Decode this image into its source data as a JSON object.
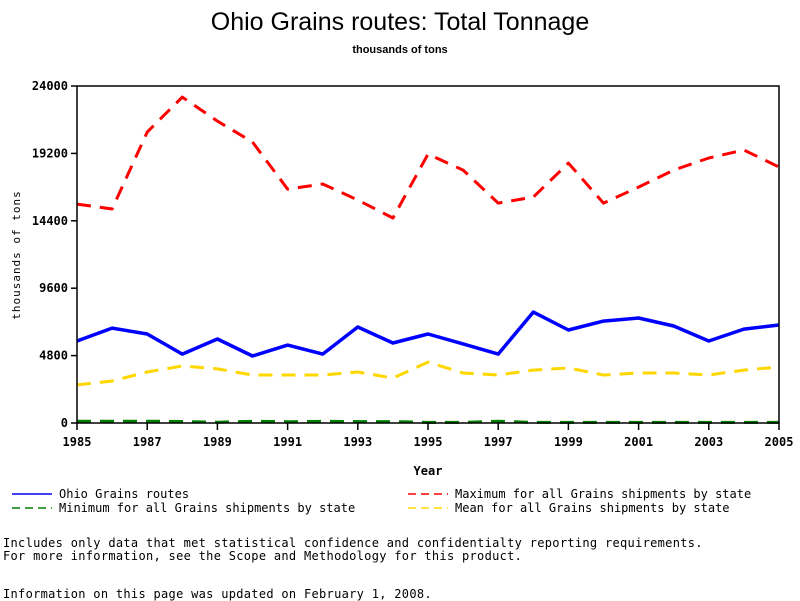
{
  "chart_data": {
    "type": "line",
    "title": "Ohio Grains routes: Total Tonnage",
    "subtitle": "thousands of tons",
    "xlabel": "Year",
    "ylabel": "thousands of tons",
    "x": [
      1985,
      1986,
      1987,
      1988,
      1989,
      1990,
      1991,
      1992,
      1993,
      1994,
      1995,
      1996,
      1997,
      1998,
      1999,
      2000,
      2001,
      2002,
      2003,
      2004,
      2005
    ],
    "xlim": [
      1985,
      2005
    ],
    "ylim": [
      0,
      24000
    ],
    "x_ticks": [
      "1985",
      "1987",
      "1989",
      "1991",
      "1993",
      "1995",
      "1997",
      "1999",
      "2001",
      "2003",
      "2005"
    ],
    "y_ticks": [
      "0",
      "4800",
      "9600",
      "14400",
      "19200",
      "24000"
    ],
    "grid": false,
    "legend_position": "bottom",
    "series": [
      {
        "name": "Ohio Grains routes",
        "color": "#0000ff",
        "style": "solid",
        "values": [
          5840,
          6760,
          6340,
          4910,
          5980,
          4770,
          5550,
          4910,
          6840,
          5700,
          6340,
          5630,
          4910,
          7900,
          6620,
          7260,
          7480,
          6910,
          5840,
          6690,
          6980
        ]
      },
      {
        "name": "Maximum for all Grains shipments by state",
        "color": "#ff0000",
        "style": "dashed",
        "values": [
          15590,
          15240,
          20720,
          23210,
          21500,
          20010,
          16660,
          17020,
          15880,
          14600,
          19150,
          18010,
          15660,
          16090,
          18510,
          15660,
          16800,
          18010,
          18870,
          19440,
          18230
        ]
      },
      {
        "name": "Minimum for all Grains shipments by state",
        "color": "#008000",
        "style": "dashed",
        "values": [
          120,
          130,
          130,
          110,
          60,
          120,
          90,
          120,
          100,
          100,
          40,
          40,
          120,
          40,
          40,
          40,
          40,
          40,
          40,
          40,
          40
        ]
      },
      {
        "name": "Mean for all Grains shipments by state",
        "color": "#ffd700",
        "style": "dashed",
        "values": [
          2710,
          2990,
          3630,
          4060,
          3850,
          3420,
          3420,
          3420,
          3630,
          3200,
          4340,
          3560,
          3420,
          3770,
          3920,
          3420,
          3560,
          3560,
          3420,
          3770,
          3990
        ]
      }
    ]
  },
  "notes": {
    "line1": "Includes only data that met statistical confidence and confidentialty reporting requirements.",
    "line2": "For more information, see the Scope and Methodology for this product.",
    "updated": "Information on this page was updated on February 1, 2008."
  }
}
